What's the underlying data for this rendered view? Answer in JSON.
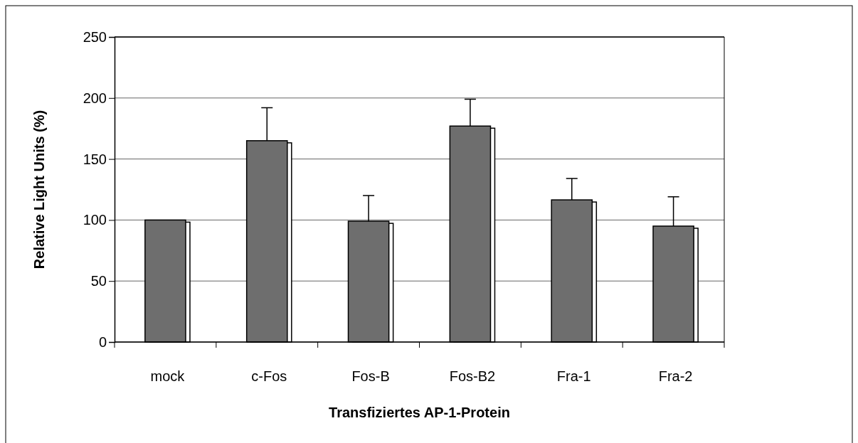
{
  "chart_data": {
    "type": "bar",
    "xlabel": "Transfiziertes AP-1-Protein",
    "ylabel": "Relative Light Units (%)",
    "categories": [
      "mock",
      "c-Fos",
      "Fos-B",
      "Fos-B2",
      "Fra-1",
      "Fra-2"
    ],
    "values": [
      100,
      165,
      99,
      177,
      116.5,
      95
    ],
    "errors": [
      null,
      [
        165,
        192
      ],
      [
        99,
        120
      ],
      [
        177,
        199
      ],
      [
        116.5,
        134
      ],
      [
        95,
        119
      ]
    ],
    "color": "#6e6e6e",
    "ylim": [
      0,
      250
    ],
    "yticks": [
      0,
      50,
      100,
      150,
      200,
      250
    ],
    "grid": "y"
  }
}
